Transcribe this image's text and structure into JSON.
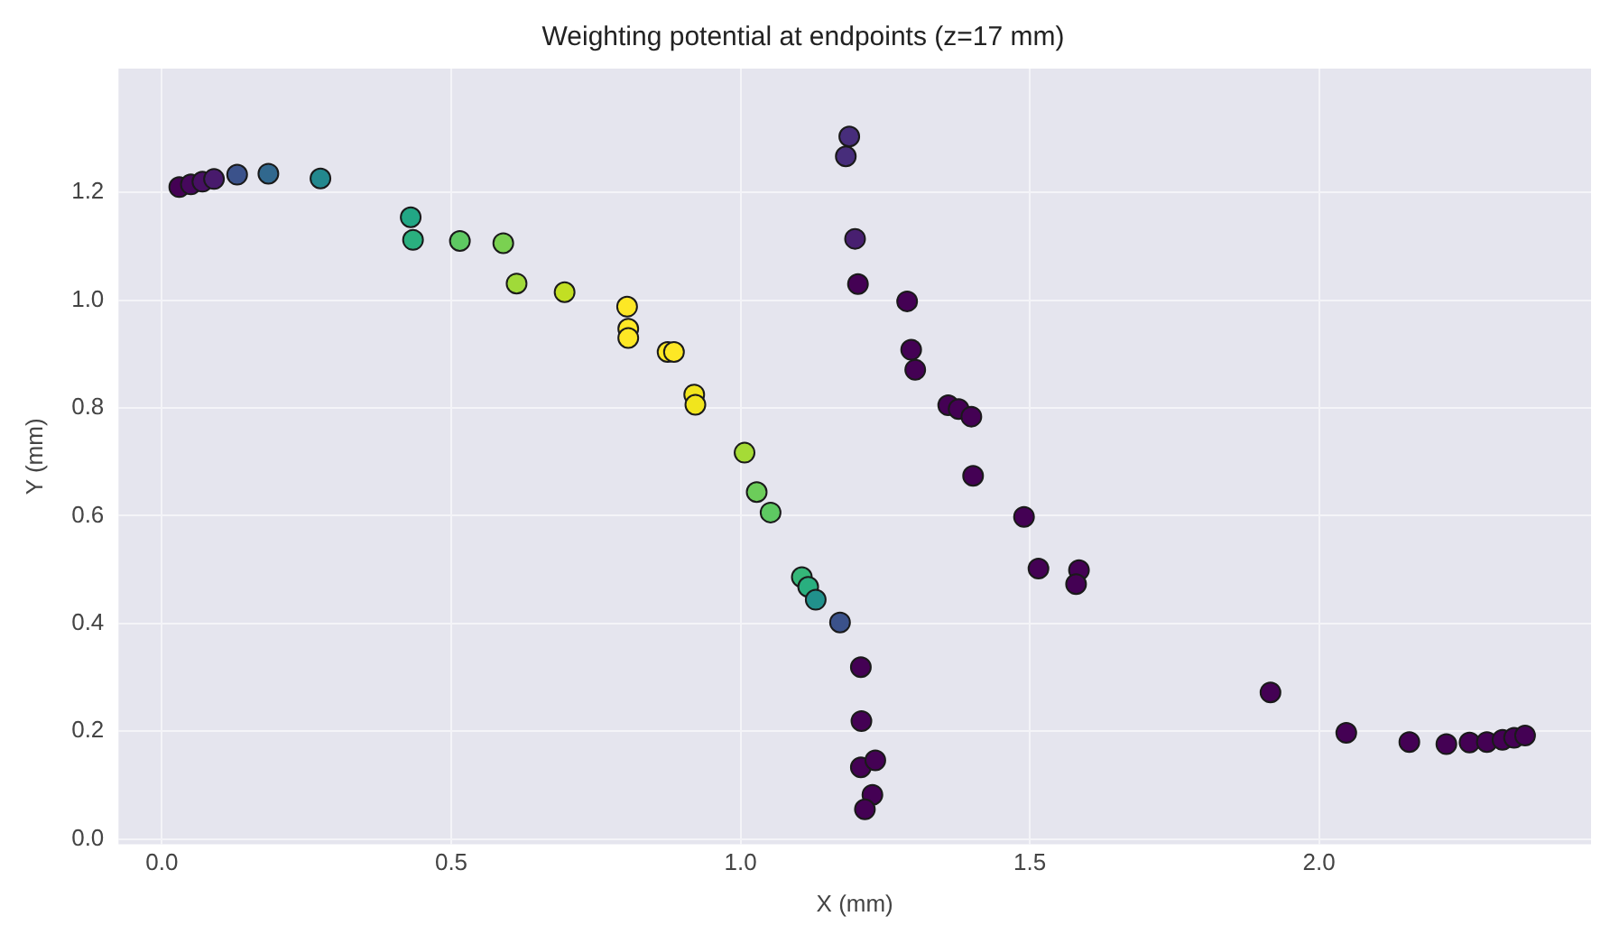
{
  "chart_data": {
    "type": "scatter",
    "title": "Weighting potential at endpoints (z=17 mm)",
    "xlabel": "X (mm)",
    "ylabel": "Y (mm)",
    "x": [
      0.03,
      0.05,
      0.07,
      0.09,
      0.13,
      0.184,
      0.274,
      0.43,
      0.434,
      0.515,
      0.59,
      0.613,
      0.696,
      0.804,
      0.806,
      0.806,
      0.874,
      0.885,
      0.92,
      0.922,
      1.007,
      1.028,
      1.052,
      1.106,
      1.117,
      1.13,
      1.172,
      1.208,
      1.209,
      1.208,
      1.233,
      1.228,
      1.215,
      1.188,
      1.182,
      1.198,
      1.203,
      1.288,
      1.295,
      1.302,
      1.359,
      1.377,
      1.399,
      1.402,
      1.49,
      1.515,
      1.585,
      1.58,
      1.916,
      2.047,
      2.156,
      2.22,
      2.26,
      2.29,
      2.317,
      2.337,
      2.356
    ],
    "values": [
      1.21,
      1.215,
      1.22,
      1.225,
      1.233,
      1.235,
      1.226,
      1.154,
      1.112,
      1.11,
      1.106,
      1.031,
      1.015,
      0.988,
      0.947,
      0.93,
      0.904,
      0.904,
      0.825,
      0.806,
      0.717,
      0.644,
      0.606,
      0.486,
      0.468,
      0.444,
      0.402,
      0.319,
      0.219,
      0.133,
      0.146,
      0.082,
      0.055,
      1.304,
      1.267,
      1.114,
      1.03,
      0.998,
      0.908,
      0.871,
      0.805,
      0.798,
      0.784,
      0.674,
      0.598,
      0.502,
      0.499,
      0.473,
      0.272,
      0.197,
      0.18,
      0.176,
      0.179,
      0.18,
      0.184,
      0.188,
      0.192
    ],
    "colors": [
      "#440154",
      "#46085c",
      "#471063",
      "#481a6c",
      "#3b528b",
      "#31688e",
      "#23888e",
      "#22a785",
      "#2ab07f",
      "#5ec962",
      "#7ad151",
      "#a0da39",
      "#c2df23",
      "#fde725",
      "#fde725",
      "#fde725",
      "#fde725",
      "#fde725",
      "#f1e51d",
      "#f1e51d",
      "#a5db36",
      "#6ccd5a",
      "#5ec962",
      "#35b779",
      "#29af7f",
      "#21918c",
      "#3b528b",
      "#440154",
      "#440154",
      "#440154",
      "#440154",
      "#440154",
      "#440154",
      "#472d7b",
      "#472d7b",
      "#481f70",
      "#440154",
      "#440154",
      "#440154",
      "#440154",
      "#440154",
      "#440154",
      "#440154",
      "#440154",
      "#440154",
      "#440154",
      "#440154",
      "#440154",
      "#440154",
      "#440154",
      "#440154",
      "#440154",
      "#440154",
      "#440154",
      "#440154",
      "#440154",
      "#440154"
    ],
    "xlim": [
      -0.075,
      2.47
    ],
    "ylim": [
      -0.01,
      1.43
    ],
    "xticks": [
      {
        "value": 0,
        "label": "0.0"
      },
      0.5,
      {
        "value": 1,
        "label": "1.0"
      },
      1.5,
      {
        "value": 2,
        "label": "2.0"
      }
    ],
    "yticks": [
      {
        "value": 0,
        "label": "0.0"
      },
      0.2,
      0.4,
      0.6,
      0.8,
      {
        "value": 1,
        "label": "1.0"
      },
      1.2
    ],
    "grid": true,
    "marker": "circle"
  }
}
